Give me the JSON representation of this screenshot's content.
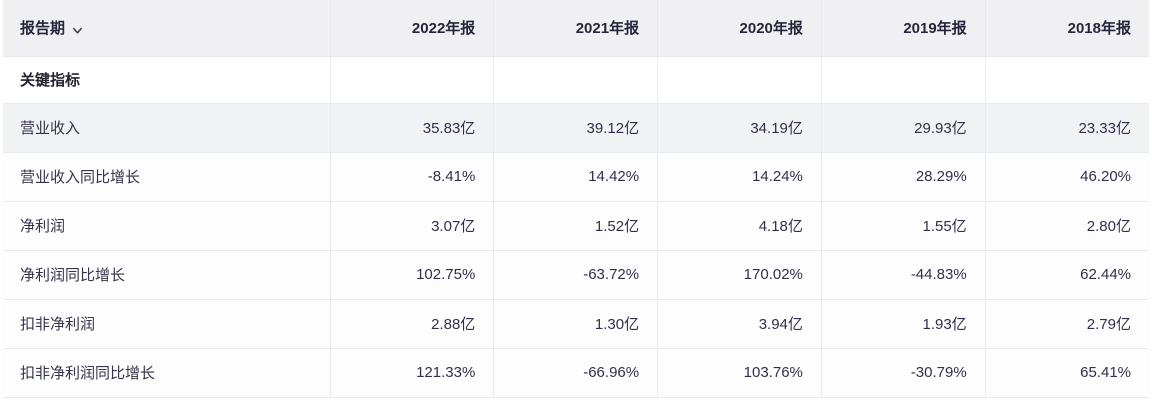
{
  "colors": {
    "header_bg": "#f0f0f2",
    "row_highlight_bg": "#f1f2f4",
    "border": "#e9eaee",
    "text": "#2d2d3c"
  },
  "table": {
    "period_label": "报告期",
    "period_dropdown_icon": "chevron-down",
    "years": [
      "2022年报",
      "2021年报",
      "2020年报",
      "2019年报",
      "2018年报"
    ],
    "rows": [
      {
        "type": "section",
        "label": "关键指标",
        "highlighted": false,
        "values": [
          "",
          "",
          "",
          "",
          ""
        ]
      },
      {
        "type": "data",
        "label": "营业收入",
        "highlighted": true,
        "values": [
          "35.83亿",
          "39.12亿",
          "34.19亿",
          "29.93亿",
          "23.33亿"
        ]
      },
      {
        "type": "data",
        "label": "营业收入同比增长",
        "highlighted": false,
        "values": [
          "-8.41%",
          "14.42%",
          "14.24%",
          "28.29%",
          "46.20%"
        ]
      },
      {
        "type": "data",
        "label": "净利润",
        "highlighted": false,
        "values": [
          "3.07亿",
          "1.52亿",
          "4.18亿",
          "1.55亿",
          "2.80亿"
        ]
      },
      {
        "type": "data",
        "label": "净利润同比增长",
        "highlighted": false,
        "values": [
          "102.75%",
          "-63.72%",
          "170.02%",
          "-44.83%",
          "62.44%"
        ]
      },
      {
        "type": "data",
        "label": "扣非净利润",
        "highlighted": false,
        "values": [
          "2.88亿",
          "1.30亿",
          "3.94亿",
          "1.93亿",
          "2.79亿"
        ]
      },
      {
        "type": "data",
        "label": "扣非净利润同比增长",
        "highlighted": false,
        "values": [
          "121.33%",
          "-66.96%",
          "103.76%",
          "-30.79%",
          "65.41%"
        ]
      }
    ]
  }
}
